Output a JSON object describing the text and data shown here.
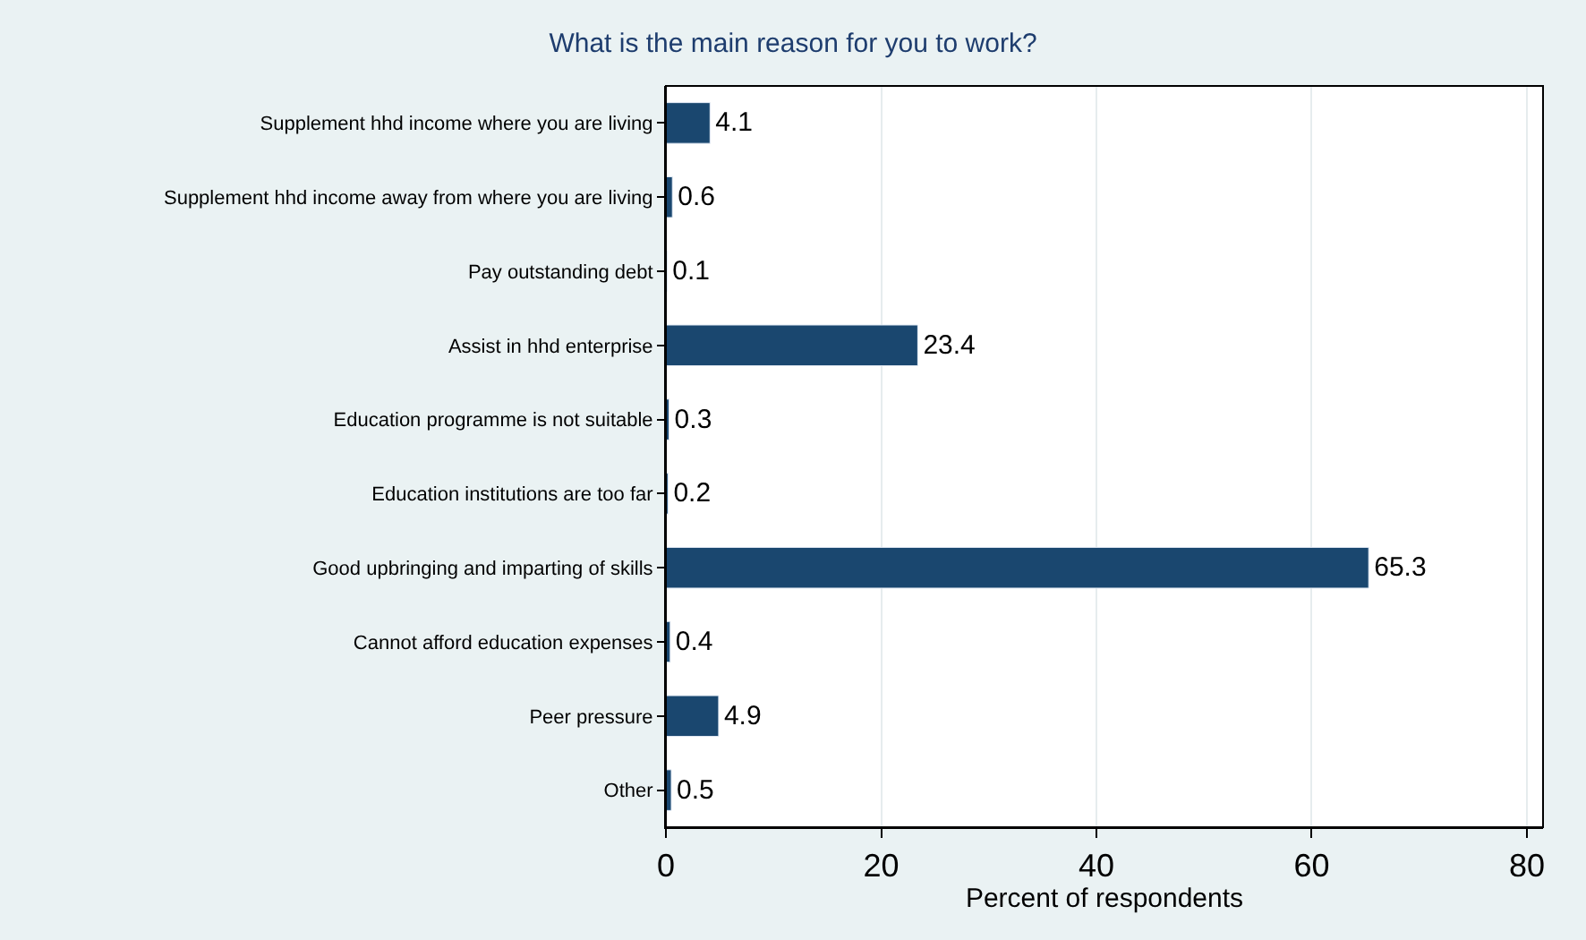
{
  "chart_data": {
    "type": "bar",
    "orientation": "horizontal",
    "title": "What is the main reason for you to work?",
    "xlabel": "Percent of respondents",
    "categories": [
      "Supplement hhd income where you are living",
      "Supplement hhd income away from where you are living",
      "Pay outstanding debt",
      "Assist in hhd enterprise",
      "Education programme is not suitable",
      "Education institutions are too far",
      "Good upbringing and imparting of skills",
      "Cannot afford education expenses",
      "Peer pressure",
      "Other"
    ],
    "values": [
      4.1,
      0.6,
      0.1,
      23.4,
      0.3,
      0.2,
      65.3,
      0.4,
      4.9,
      0.5
    ],
    "color": "#1a476f",
    "xlim": [
      0,
      81.5
    ],
    "xticks": [
      0,
      20,
      40,
      60,
      80
    ],
    "grid": "x",
    "legend": false,
    "data_labels": true
  }
}
